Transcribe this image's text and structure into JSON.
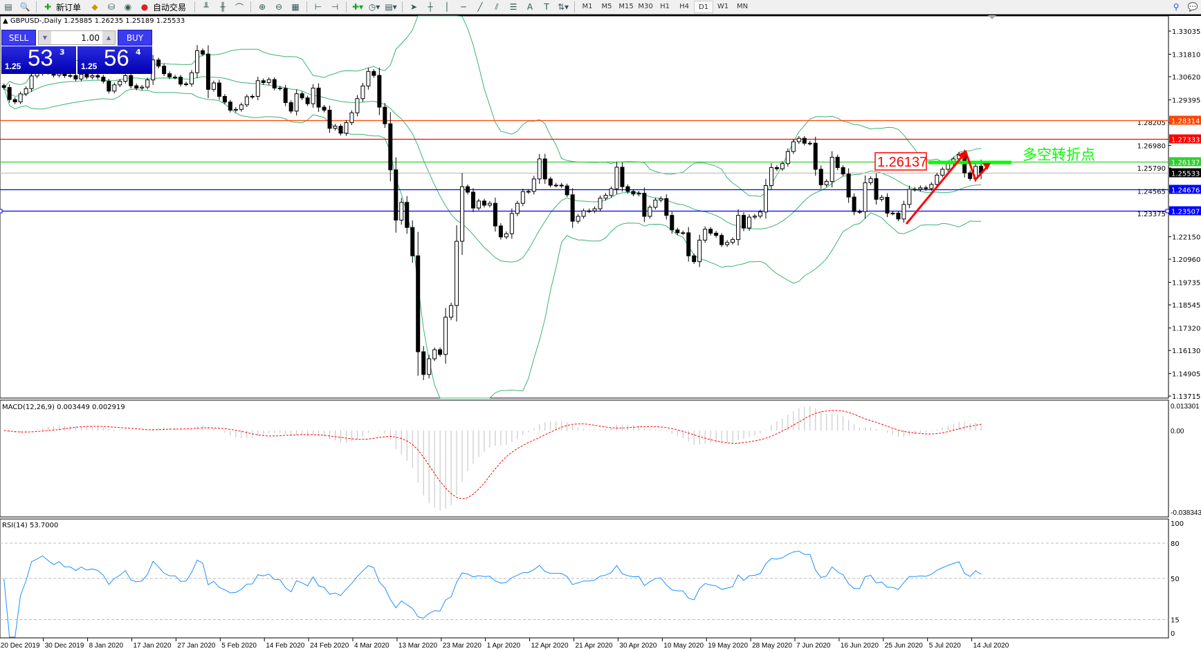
{
  "toolbar": {
    "new_order": "新订单",
    "auto_trading": "自动交易",
    "timeframes": [
      "M1",
      "M5",
      "M15",
      "M30",
      "H1",
      "H4",
      "D1",
      "W1",
      "MN"
    ],
    "active_timeframe": "D1"
  },
  "header": {
    "symbol": "GBPUSD-,Daily",
    "open": "1.25885",
    "high": "1.26235",
    "low": "1.25189",
    "close": "1.25533"
  },
  "trade_panel": {
    "sell_label": "SELL",
    "buy_label": "BUY",
    "lot": "1.00",
    "sell": {
      "prefix": "1.25",
      "big": "53",
      "sup": "3"
    },
    "buy": {
      "prefix": "1.25",
      "big": "56",
      "sup": "4"
    }
  },
  "chart_data": {
    "type": "candlestick",
    "symbol": "GBPUSD",
    "timeframe": "Daily",
    "ylim": [
      1.1361,
      1.3384
    ],
    "close": [
      1.3005,
      1.2941,
      1.2929,
      1.2971,
      1.2999,
      1.3066,
      1.308,
      1.31,
      1.3085,
      1.307,
      1.309,
      1.3068,
      1.3068,
      1.305,
      1.3075,
      1.306,
      1.3068,
      1.306,
      1.3038,
      1.2986,
      1.3019,
      1.3038,
      1.3068,
      1.3014,
      1.3002,
      1.3007,
      1.3045,
      1.3151,
      1.3118,
      1.3078,
      1.306,
      1.306,
      1.3023,
      1.3024,
      1.3083,
      1.32,
      1.3182,
      1.2995,
      1.3029,
      1.2958,
      1.2928,
      1.2885,
      1.2889,
      1.2913,
      1.2956,
      1.2958,
      1.3041,
      1.3031,
      1.3047,
      1.3002,
      1.3,
      1.2925,
      1.288,
      1.2972,
      1.295,
      1.2919,
      1.3002,
      1.2901,
      1.2885,
      1.2789,
      1.28,
      1.2763,
      1.2819,
      1.2871,
      1.2946,
      1.3013,
      1.309,
      1.3069,
      1.2901,
      1.2813,
      1.2569,
      1.2303,
      1.2397,
      1.2264,
      1.2114,
      1.1606,
      1.1486,
      1.1569,
      1.1617,
      1.1592,
      1.1789,
      1.1851,
      1.2191,
      1.248,
      1.2451,
      1.2367,
      1.2404,
      1.2382,
      1.2392,
      1.2272,
      1.2214,
      1.2231,
      1.2338,
      1.2392,
      1.2454,
      1.2455,
      1.2521,
      1.2627,
      1.2521,
      1.2488,
      1.2488,
      1.2484,
      1.2437,
      1.2297,
      1.2323,
      1.2352,
      1.2352,
      1.2363,
      1.2419,
      1.2434,
      1.2469,
      1.2583,
      1.248,
      1.2455,
      1.2441,
      1.2445,
      1.2323,
      1.2371,
      1.2409,
      1.2417,
      1.2328,
      1.2251,
      1.2236,
      1.2236,
      1.2114,
      1.2083,
      1.2197,
      1.2255,
      1.2234,
      1.2222,
      1.2173,
      1.2185,
      1.22,
      1.2328,
      1.2261,
      1.2319,
      1.2324,
      1.2346,
      1.2486,
      1.2581,
      1.2575,
      1.2602,
      1.2666,
      1.2718,
      1.2736,
      1.271,
      1.271,
      1.2572,
      1.249,
      1.2508,
      1.2636,
      1.2581,
      1.2547,
      1.2425,
      1.2348,
      1.2348,
      1.2501,
      1.2523,
      1.2413,
      1.2424,
      1.234,
      1.234,
      1.2309,
      1.2386,
      1.2466,
      1.2466,
      1.2474,
      1.247,
      1.2492,
      1.2541,
      1.2572,
      1.2602,
      1.2627,
      1.2651,
      1.2553,
      1.2523,
      1.2587,
      1.25533
    ],
    "last_bar": {
      "open": 1.25885,
      "high": 1.26235,
      "low": 1.25189,
      "close": 1.25533
    },
    "price_ticks": [
      "1.33035",
      "1.31810",
      "1.30620",
      "1.29395",
      "1.28205",
      "1.26980",
      "1.25790",
      "1.24565",
      "1.23375",
      "1.22150",
      "1.20960",
      "1.19735",
      "1.18545",
      "1.17320",
      "1.16130",
      "1.14905",
      "1.13715"
    ],
    "date_labels": [
      "20 Dec 2019",
      "30 Dec 2019",
      "8 Jan 2020",
      "17 Jan 2020",
      "27 Jan 2020",
      "5 Feb 2020",
      "14 Feb 2020",
      "24 Feb 2020",
      "4 Mar 2020",
      "13 Mar 2020",
      "23 Mar 2020",
      "1 Apr 2020",
      "12 Apr 2020",
      "21 Apr 2020",
      "30 Apr 2020",
      "10 May 2020",
      "19 May 2020",
      "28 May 2020",
      "7 Jun 2020",
      "16 Jun 2020",
      "25 Jun 2020",
      "5 Jul 2020",
      "14 Jul 2020"
    ],
    "levels": [
      {
        "price": "1.28314",
        "color": "#ff4500"
      },
      {
        "price": "1.27333",
        "color": "#ff0000"
      },
      {
        "price": "1.26137",
        "color": "#32cd32"
      },
      {
        "price": "1.25533",
        "color": "#c0c0c0",
        "tag_color": "#000000"
      },
      {
        "price": "1.24676",
        "color": "#0000ff"
      },
      {
        "price": "1.23507",
        "color": "#0000ff"
      }
    ],
    "annotation": {
      "price_label": "1.26137",
      "text": "多空转折点",
      "text_color": "#00ff00",
      "label_color": "#ff0000",
      "arrow_color": "#ff0000",
      "zone_color": "#00ff00"
    },
    "bollinger": {
      "color": "#3cb371"
    },
    "macd": {
      "label": "MACD(12,26,9) 0.003449 0.002919",
      "range": [
        -0.038343,
        0.013301
      ],
      "axis": [
        "0.013301",
        "0.00",
        "-0.038343"
      ],
      "histogram_color": "#c0c0c0",
      "signal_color": "#ff0000"
    },
    "rsi": {
      "label": "RSI(14) 53.7000",
      "range": [
        0,
        100
      ],
      "levels": [
        80,
        50,
        15
      ],
      "axis": [
        "100",
        "80",
        "50",
        "15",
        "0"
      ],
      "color": "#1e90ff"
    }
  }
}
